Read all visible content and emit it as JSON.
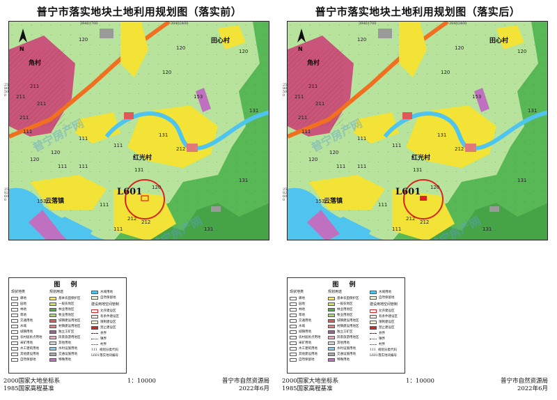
{
  "panels": [
    {
      "title": "普宁市落实地块土地利用规划图（落实前）",
      "place_labels": {
        "v1": "角村",
        "v2": "田心村",
        "v3": "红光村",
        "v4": "云落镇"
      },
      "parcel_label": "L601",
      "coords": {
        "top1": "39401700",
        "top2": "39402400",
        "bot": "39401700",
        "left1": "2580500",
        "left2": "2582600"
      },
      "codes": [
        "120",
        "120",
        "120",
        "120",
        "153",
        "211",
        "211",
        "211",
        "111",
        "111",
        "111",
        "111",
        "131",
        "131",
        "131",
        "120",
        "212",
        "212",
        "153",
        "111",
        "111",
        "211",
        "212",
        "131",
        "111",
        "131",
        "120",
        "120"
      ]
    },
    {
      "title": "普宁市落实地块土地利用规划图（落实后）",
      "place_labels": {
        "v1": "角村",
        "v2": "田心村",
        "v3": "红光村",
        "v4": "云落镇"
      },
      "parcel_label": "L601",
      "coords": {
        "top1": "39401700",
        "top2": "39402400",
        "bot": "39401700",
        "left1": "2580500",
        "left2": "2582600"
      },
      "codes": [
        "120",
        "120",
        "120",
        "120",
        "153",
        "211",
        "211",
        "211",
        "111",
        "111",
        "111",
        "111",
        "131",
        "131",
        "131",
        "120",
        "212",
        "212",
        "153",
        "111",
        "111",
        "211",
        "212",
        "131",
        "111",
        "131",
        "120",
        "120"
      ]
    }
  ],
  "legend": {
    "title": "图  例",
    "col1_head": "现状地类",
    "col1": [
      "耕地",
      "园地",
      "林地",
      "草地",
      "交通用地",
      "水域",
      "城镇用地",
      "农村居民点用地",
      "采矿用地",
      "水工建筑用地",
      "其他建设用地",
      "自然保留地"
    ],
    "col2_head": "规划用途",
    "col2": [
      {
        "label": "基本农田保护区",
        "color": "#f7ec4a"
      },
      {
        "label": "一般农地区",
        "color": "#c8e65a"
      },
      {
        "label": "林业用地区",
        "color": "#4fb54a"
      },
      {
        "label": "牧业用地区",
        "color": "#a9d96a"
      },
      {
        "label": "城镇建设用地区",
        "color": "#e05a5a"
      },
      {
        "label": "村镇建设用地区",
        "color": "#e87f7f"
      },
      {
        "label": "独立工矿区",
        "color": "#a35f9a"
      },
      {
        "label": "风景旅游用地区",
        "color": "#f4a6c6"
      },
      {
        "label": "其他用地",
        "color": "#d5d5d5"
      },
      {
        "label": "水利设施用地",
        "color": "#7ecff0"
      },
      {
        "label": "交通设施用地",
        "color": "#aaaaaa"
      },
      {
        "label": "特殊用地",
        "color": "#c070c0"
      }
    ],
    "col3_head": "",
    "col3": [
      {
        "label": "水域用地",
        "color": "#4fc6ee"
      },
      {
        "label": "自然保留地",
        "color": "#e6f2d5"
      }
    ],
    "col3_sub_head": "建设用地空间管制",
    "col3_sub": [
      "允许建设区",
      "有条件建设区",
      "限制建设区",
      "禁止建设区"
    ],
    "col3_lines": [
      "县界",
      "镇界",
      "村界",
      "规划分类代码",
      "落实地块编号"
    ],
    "col3_line_codes": [
      "111",
      "L601"
    ]
  },
  "footer": {
    "left1": "2000国家大地坐标系",
    "left2": "1985国家高程基准",
    "scale": "1：10000",
    "org": "普宁市自然资源局",
    "date": "2022年6月"
  },
  "watermark": "普宁房产网",
  "colors": {
    "green_light": "#b7e39c",
    "forest": "#58b856",
    "yellow": "#f2e336",
    "water": "#4ec4ef",
    "urban": "#c9557a",
    "road": "#f07020",
    "parcel_circle": "#e02020"
  }
}
